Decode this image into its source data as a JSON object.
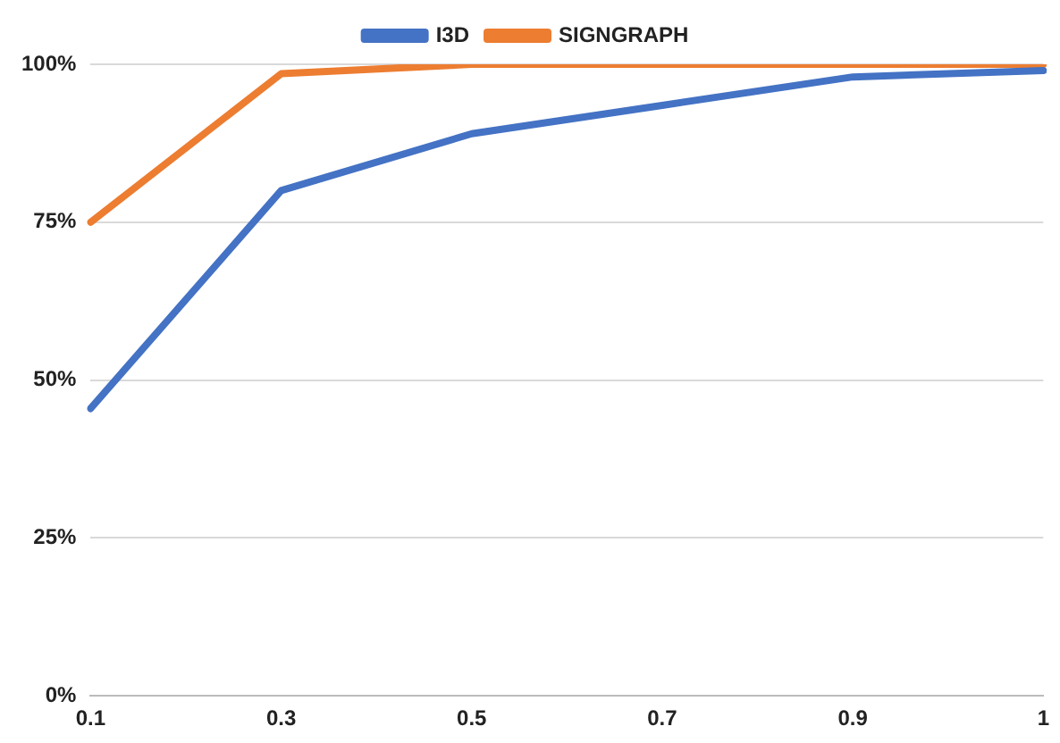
{
  "chart_data": {
    "type": "line",
    "categories": [
      "0.1",
      "0.3",
      "0.5",
      "0.7",
      "0.9",
      "1"
    ],
    "series": [
      {
        "name": "I3D",
        "color": "#4472c4",
        "values": [
          45.5,
          80,
          89,
          93.5,
          98,
          99
        ]
      },
      {
        "name": "SIGNGRAPH",
        "color": "#ed7d31",
        "values": [
          75,
          98.5,
          100,
          100,
          100,
          100
        ]
      }
    ],
    "ylim": [
      0,
      100
    ],
    "yticks": [
      {
        "value": 0,
        "label": "0%"
      },
      {
        "value": 25,
        "label": "25%"
      },
      {
        "value": 50,
        "label": "50%"
      },
      {
        "value": 75,
        "label": "75%"
      },
      {
        "value": 100,
        "label": "100%"
      }
    ],
    "grid": "y",
    "legend": "top",
    "marker": "none",
    "line_style": "solid"
  }
}
